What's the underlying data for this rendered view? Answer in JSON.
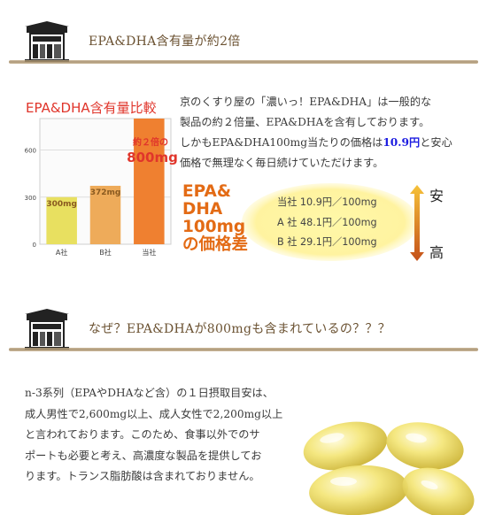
{
  "section1": {
    "title": "EPA&DHA含有量が約2倍"
  },
  "chart": {
    "title": "EPA&DHA含有量比較",
    "annotation_top": "約２倍の",
    "annotation_bottom": "800mg"
  },
  "chart_data": {
    "type": "bar",
    "title": "EPA&DHA含有量比較",
    "categories": [
      "A社",
      "B社",
      "当社"
    ],
    "values": [
      300,
      372,
      800
    ],
    "value_labels": [
      "300mg",
      "372mg",
      ""
    ],
    "yticks": [
      0,
      300,
      600
    ],
    "ylim": [
      0,
      800
    ],
    "colors": [
      "#e8e060",
      "#eeab5a",
      "#ef8030"
    ],
    "grid": true
  },
  "intro_lines": [
    "京のくすり屋の「濃いっ！EPA&DHA」は一般的な",
    "製品の約２倍量、EPA&DHAを含有しております。",
    "しかもEPA&DHA100mg当たりの価格は",
    "価格で無理なく毎日続けていただけます。"
  ],
  "intro_highlight": "10.9円",
  "intro_line3_tail": "と安心",
  "price_box": {
    "heading_lines": [
      "EPA&",
      "DHA",
      "100mg",
      "の価格差"
    ],
    "rows": [
      "当社 10.9円／100mg",
      "A 社 48.1円／100mg",
      "B 社 29.1円／100mg"
    ],
    "cheap_label": "安",
    "expensive_label": "高"
  },
  "section2": {
    "title": "なぜ？EPA&DHAが800mgも含まれているの？？？"
  },
  "body_lines": [
    "n-3系列（EPAやDHAなど含）の１日摂取目安は、",
    "成人男性で2,600mg以上、成人女性で2,200mg以上",
    "と言われております。このため、食事以外でのサ",
    "ポートも必要と考え、高濃度な製品を提供してお",
    "ります。トランス脂肪酸は含まれておりません。"
  ],
  "icons": [
    "shop-icon",
    "capsule-image"
  ],
  "colors": {
    "accent_red": "#e0352b",
    "accent_orange": "#e36b15",
    "highlight_blue": "#1c1ce0",
    "rule": "#a58c66"
  }
}
